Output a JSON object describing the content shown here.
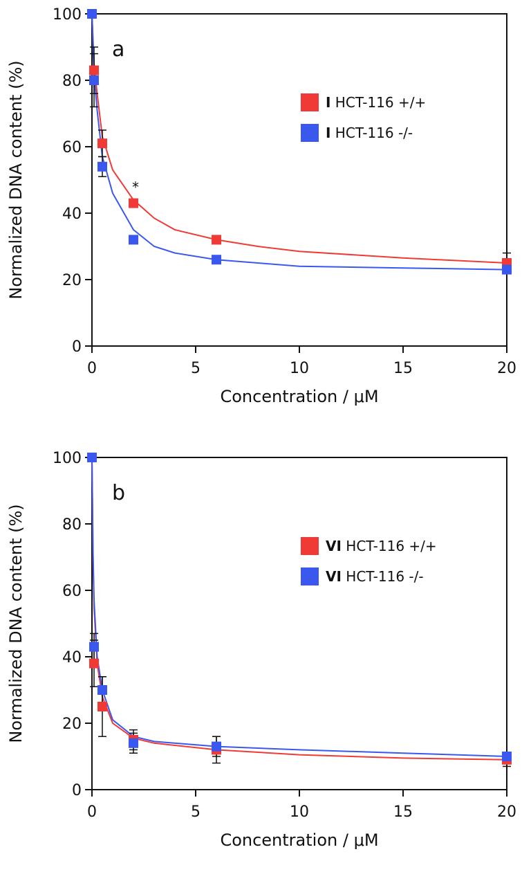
{
  "chart_data": [
    {
      "type": "scatter",
      "panel_label": "a",
      "xlabel": "Concentration  /  μM",
      "ylabel": "Normalized DNA content (%)",
      "xlim": [
        0,
        20
      ],
      "ylim": [
        0,
        100
      ],
      "xticks": [
        0,
        5,
        10,
        15,
        20
      ],
      "yticks": [
        0,
        20,
        40,
        60,
        80,
        100
      ],
      "grid": false,
      "legend_position": "top-right",
      "annotations": [
        {
          "text": "*",
          "x": 2.1,
          "y": 48
        }
      ],
      "series": [
        {
          "legend_prefix": "I",
          "name": "HCT-116 +/+",
          "color": "#ef3a36",
          "x": [
            0,
            0.1,
            0.5,
            2,
            6,
            20
          ],
          "y": [
            100,
            83,
            61,
            43,
            32,
            25
          ],
          "error": [
            0,
            7,
            4,
            1,
            1,
            3
          ],
          "fit": [
            [
              0,
              100
            ],
            [
              0.1,
              85
            ],
            [
              0.25,
              76
            ],
            [
              0.5,
              63
            ],
            [
              1,
              53
            ],
            [
              2,
              44
            ],
            [
              3,
              38.5
            ],
            [
              4,
              35
            ],
            [
              6,
              32
            ],
            [
              8,
              30
            ],
            [
              10,
              28.5
            ],
            [
              15,
              26.5
            ],
            [
              20,
              25
            ]
          ]
        },
        {
          "legend_prefix": "I",
          "name": "HCT-116 -/-",
          "color": "#3a57ee",
          "x": [
            0,
            0.1,
            0.5,
            2,
            6,
            20
          ],
          "y": [
            100,
            80,
            54,
            32,
            26,
            23
          ],
          "error": [
            0,
            8,
            3,
            1,
            1,
            1
          ],
          "fit": [
            [
              0,
              100
            ],
            [
              0.1,
              82
            ],
            [
              0.25,
              71
            ],
            [
              0.5,
              57
            ],
            [
              1,
              46
            ],
            [
              2,
              35
            ],
            [
              3,
              30
            ],
            [
              4,
              28
            ],
            [
              6,
              26
            ],
            [
              8,
              25
            ],
            [
              10,
              24
            ],
            [
              15,
              23.5
            ],
            [
              20,
              23
            ]
          ]
        }
      ]
    },
    {
      "type": "scatter",
      "panel_label": "b",
      "xlabel": "Concentration  /  μM",
      "ylabel": "Normalized DNA content (%)",
      "xlim": [
        0,
        20
      ],
      "ylim": [
        0,
        100
      ],
      "xticks": [
        0,
        5,
        10,
        15,
        20
      ],
      "yticks": [
        0,
        20,
        40,
        60,
        80,
        100
      ],
      "grid": false,
      "legend_position": "top-right",
      "annotations": [],
      "series": [
        {
          "legend_prefix": "VI",
          "name": "HCT-116 +/+",
          "color": "#ef3a36",
          "x": [
            0,
            0.1,
            0.5,
            2,
            6,
            20
          ],
          "y": [
            100,
            38,
            25,
            15,
            12,
            9
          ],
          "error": [
            0,
            7,
            9,
            3,
            4,
            2
          ],
          "fit": [
            [
              0,
              100
            ],
            [
              0.05,
              70
            ],
            [
              0.1,
              55
            ],
            [
              0.25,
              38
            ],
            [
              0.5,
              28
            ],
            [
              1,
              20
            ],
            [
              2,
              15.5
            ],
            [
              3,
              14
            ],
            [
              6,
              12
            ],
            [
              10,
              10.5
            ],
            [
              15,
              9.5
            ],
            [
              20,
              9
            ]
          ]
        },
        {
          "legend_prefix": "VI",
          "name": "HCT-116 -/-",
          "color": "#3a57ee",
          "x": [
            0,
            0.1,
            0.5,
            2,
            6,
            20
          ],
          "y": [
            100,
            43,
            30,
            14,
            13,
            10
          ],
          "error": [
            0,
            4,
            4,
            3,
            3,
            1
          ],
          "fit": [
            [
              0,
              100
            ],
            [
              0.05,
              72
            ],
            [
              0.1,
              57
            ],
            [
              0.25,
              40
            ],
            [
              0.5,
              30
            ],
            [
              1,
              21
            ],
            [
              2,
              16
            ],
            [
              3,
              14.5
            ],
            [
              6,
              13
            ],
            [
              10,
              12
            ],
            [
              15,
              11
            ],
            [
              20,
              10
            ]
          ]
        }
      ]
    }
  ]
}
